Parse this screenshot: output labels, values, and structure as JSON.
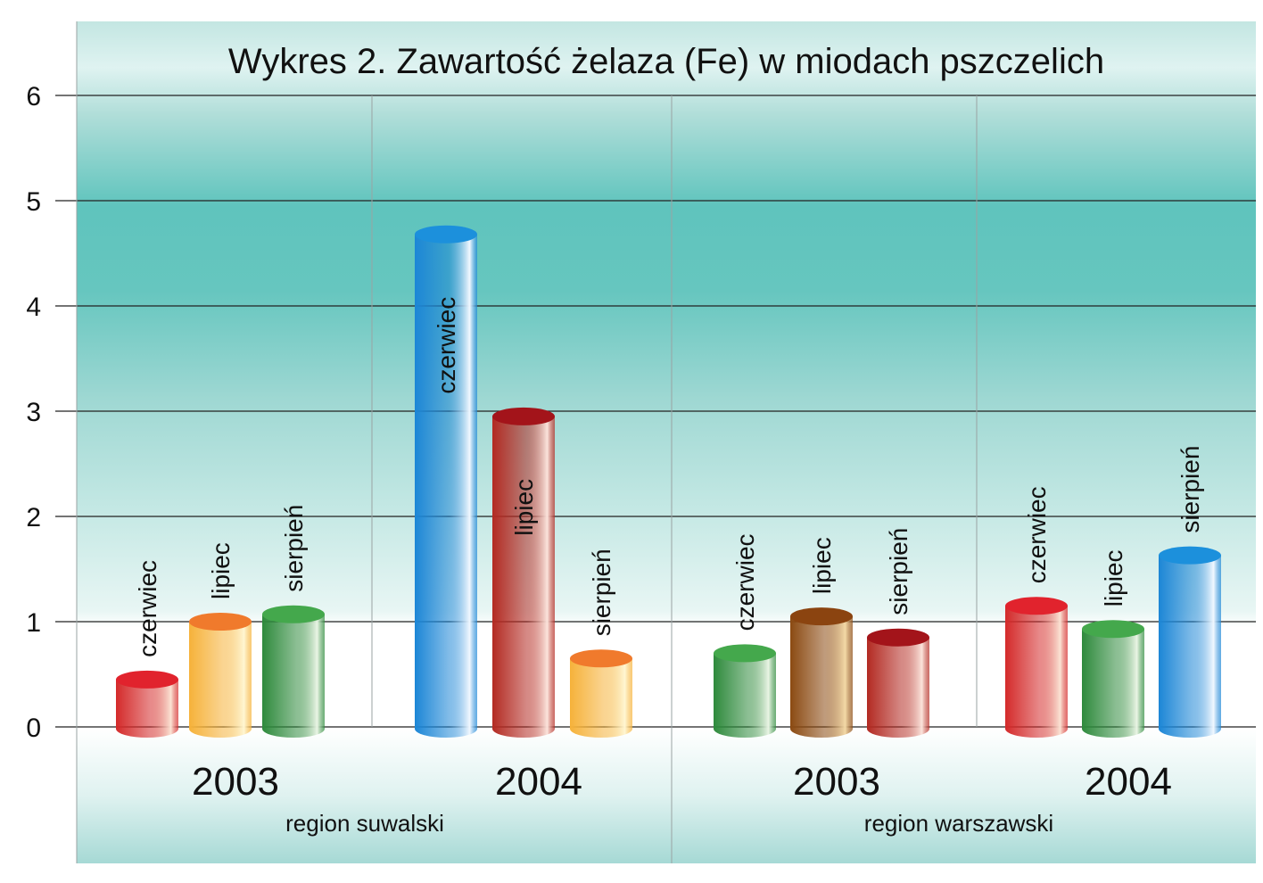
{
  "chart_data": {
    "type": "bar",
    "title": "Wykres 2. Zawartość żelaza (Fe) w miodach pszczelich",
    "ylim": [
      0,
      6
    ],
    "yticks": [
      "0",
      "1",
      "2",
      "3",
      "4",
      "5",
      "6"
    ],
    "grid": true,
    "groups": [
      {
        "region": "region suwalski",
        "year": "2003",
        "bars": [
          {
            "label": "czerwiec",
            "value": 0.45,
            "color": "red"
          },
          {
            "label": "lipiec",
            "value": 1.0,
            "color": "orange"
          },
          {
            "label": "sierpień",
            "value": 1.07,
            "color": "green"
          }
        ]
      },
      {
        "region": "region suwalski",
        "year": "2004",
        "bars": [
          {
            "label": "czerwiec",
            "value": 4.68,
            "color": "blue"
          },
          {
            "label": "lipiec",
            "value": 2.95,
            "color": "darkred"
          },
          {
            "label": "sierpień",
            "value": 0.65,
            "color": "orange"
          }
        ]
      },
      {
        "region": "region warszawski",
        "year": "2003",
        "bars": [
          {
            "label": "czerwiec",
            "value": 0.7,
            "color": "green"
          },
          {
            "label": "lipiec",
            "value": 1.05,
            "color": "brown"
          },
          {
            "label": "sierpień",
            "value": 0.85,
            "color": "darkred"
          }
        ]
      },
      {
        "region": "region warszawski",
        "year": "2004",
        "bars": [
          {
            "label": "czerwiec",
            "value": 1.15,
            "color": "red"
          },
          {
            "label": "lipiec",
            "value": 0.93,
            "color": "green"
          },
          {
            "label": "sierpień",
            "value": 1.63,
            "color": "blue"
          }
        ]
      }
    ],
    "regions": [
      "region suwalski",
      "region warszawski"
    ]
  },
  "colors": {
    "red": {
      "top": "#e1232d",
      "dark": "#d42a2a",
      "light": "#fbe3d4"
    },
    "orange": {
      "top": "#f07a2c",
      "dark": "#f6b23a",
      "light": "#fff6d2"
    },
    "green": {
      "top": "#44a84c",
      "dark": "#2e8a3c",
      "light": "#eaf5e5"
    },
    "blue": {
      "top": "#1c90dc",
      "dark": "#1c86d6",
      "light": "#f2f8ff"
    },
    "darkred": {
      "top": "#a3141a",
      "dark": "#b32a22",
      "light": "#fbe4dc"
    },
    "brown": {
      "top": "#8b4410",
      "dark": "#8b4a12",
      "light": "#f3d9a6"
    },
    "panel_light": "#f4fbfa",
    "panel_teal": "#5fc4bd"
  }
}
